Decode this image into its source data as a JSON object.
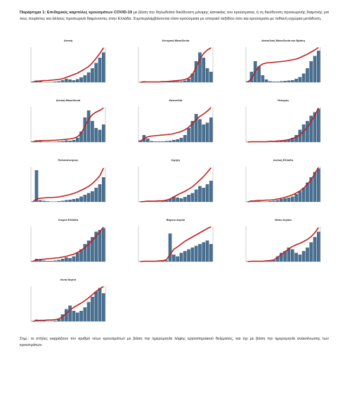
{
  "header": {
    "label": "Παράρτημα 1:",
    "title": "Επιδημικές καμπύλες κρουσμάτων COVID-19",
    "text": "με βάση την δηλωθείσα διεύθυνση μόνιμης κατοικίας του κρούσματος ή τη διεύθυνση προσωρινής διαμονής για τους τουρίστες και άλλους προσωρινά διαμένοντες στην Ελλάδα. Συμπεριλαμβάνονται τόσο κρούσματα με ιστορικό ταξιδίου όσο και κρούσματα με πιθανή εγχώρια μετάδοση."
  },
  "style": {
    "bar_color": "#4a6f8f",
    "line_color": "#c0201f",
    "ylim": [
      0,
      100
    ],
    "y2lim": [
      0,
      100
    ]
  },
  "charts": [
    {
      "title": "Αττική",
      "values": [
        2,
        5,
        3,
        1,
        1,
        1,
        2,
        3,
        6,
        10,
        8,
        6,
        9,
        14,
        20,
        28,
        40,
        55,
        70,
        85
      ],
      "line": [
        1,
        3,
        4,
        5,
        5,
        6,
        7,
        8,
        10,
        14,
        18,
        22,
        26,
        32,
        38,
        45,
        55,
        68,
        82,
        98
      ]
    },
    {
      "title": "Κεντρική Μακεδονία",
      "values": [
        1,
        3,
        2,
        1,
        1,
        1,
        1,
        2,
        3,
        4,
        3,
        3,
        5,
        10,
        25,
        60,
        85,
        70,
        40,
        30
      ],
      "line": [
        0,
        1,
        1,
        1,
        1,
        1,
        2,
        2,
        3,
        4,
        5,
        6,
        8,
        12,
        22,
        42,
        65,
        82,
        92,
        98
      ]
    },
    {
      "title": "Ανατολική Μακεδονία και Θράκη",
      "values": [
        3,
        30,
        60,
        45,
        20,
        8,
        3,
        2,
        2,
        3,
        4,
        5,
        6,
        10,
        15,
        25,
        40,
        60,
        75,
        90
      ],
      "line": [
        1,
        10,
        30,
        45,
        52,
        55,
        56,
        57,
        58,
        59,
        60,
        62,
        64,
        66,
        70,
        75,
        80,
        86,
        92,
        99
      ]
    },
    {
      "title": "Δυτική Μακεδονία",
      "values": [
        2,
        5,
        3,
        1,
        1,
        1,
        1,
        2,
        3,
        5,
        4,
        6,
        12,
        30,
        70,
        90,
        60,
        40,
        35,
        50
      ],
      "line": [
        1,
        3,
        4,
        4,
        4,
        5,
        5,
        6,
        7,
        8,
        9,
        11,
        15,
        25,
        45,
        65,
        78,
        85,
        90,
        97
      ]
    },
    {
      "title": "Θεσσαλία",
      "values": [
        5,
        20,
        10,
        3,
        2,
        2,
        2,
        3,
        4,
        6,
        8,
        12,
        20,
        40,
        60,
        80,
        65,
        50,
        55,
        70
      ],
      "line": [
        2,
        10,
        15,
        17,
        18,
        19,
        20,
        21,
        22,
        24,
        27,
        30,
        35,
        42,
        52,
        64,
        73,
        80,
        88,
        98
      ]
    },
    {
      "title": "Ήπειρος",
      "values": [
        1,
        2,
        1,
        1,
        1,
        1,
        1,
        2,
        3,
        4,
        5,
        8,
        12,
        20,
        35,
        50,
        60,
        75,
        85,
        95
      ],
      "line": [
        0,
        1,
        1,
        1,
        1,
        1,
        2,
        2,
        3,
        4,
        5,
        7,
        10,
        14,
        20,
        30,
        42,
        58,
        76,
        97
      ]
    },
    {
      "title": "Πελοπόννησος",
      "values": [
        1,
        90,
        5,
        3,
        2,
        1,
        1,
        2,
        3,
        5,
        6,
        8,
        10,
        15,
        20,
        25,
        30,
        40,
        50,
        70
      ],
      "line": [
        0,
        8,
        10,
        11,
        12,
        12,
        13,
        14,
        16,
        18,
        21,
        24,
        28,
        33,
        38,
        44,
        52,
        62,
        74,
        96
      ]
    },
    {
      "title": "Κρήτη",
      "values": [
        1,
        2,
        2,
        1,
        1,
        1,
        2,
        4,
        8,
        15,
        12,
        10,
        14,
        20,
        25,
        35,
        45,
        40,
        50,
        60
      ],
      "line": [
        0,
        1,
        2,
        2,
        2,
        3,
        3,
        5,
        8,
        14,
        20,
        25,
        30,
        36,
        43,
        52,
        62,
        72,
        84,
        97
      ]
    },
    {
      "title": "Δυτική Ελλάδα",
      "values": [
        1,
        4,
        3,
        2,
        1,
        1,
        2,
        3,
        5,
        8,
        10,
        12,
        15,
        22,
        30,
        40,
        55,
        70,
        85,
        95
      ],
      "line": [
        0,
        2,
        3,
        4,
        4,
        5,
        5,
        6,
        8,
        10,
        13,
        16,
        20,
        25,
        31,
        39,
        50,
        63,
        80,
        98
      ]
    },
    {
      "title": "Στερεά Ελλάδα",
      "values": [
        2,
        8,
        5,
        3,
        2,
        2,
        3,
        5,
        8,
        12,
        10,
        15,
        25,
        35,
        50,
        60,
        70,
        85,
        90,
        95
      ],
      "line": [
        1,
        4,
        6,
        7,
        8,
        9,
        10,
        11,
        13,
        15,
        18,
        21,
        26,
        32,
        40,
        50,
        60,
        72,
        85,
        98
      ]
    },
    {
      "title": "Βόρειο Αιγαίο",
      "values": [
        1,
        2,
        1,
        1,
        1,
        1,
        2,
        3,
        80,
        20,
        15,
        25,
        30,
        35,
        40,
        45,
        50,
        55,
        60,
        50
      ],
      "line": [
        0,
        1,
        1,
        1,
        1,
        2,
        3,
        5,
        20,
        35,
        42,
        50,
        58,
        64,
        70,
        76,
        82,
        88,
        94,
        99
      ]
    },
    {
      "title": "Νότιο Αιγαίο",
      "values": [
        1,
        2,
        1,
        1,
        1,
        1,
        2,
        4,
        15,
        25,
        30,
        40,
        35,
        25,
        20,
        30,
        40,
        55,
        70,
        85
      ],
      "line": [
        0,
        1,
        1,
        1,
        1,
        2,
        3,
        5,
        12,
        20,
        28,
        36,
        43,
        48,
        52,
        57,
        63,
        71,
        82,
        97
      ]
    },
    {
      "title": "Ιόνια Νησιά",
      "values": [
        1,
        5,
        3,
        2,
        1,
        1,
        2,
        6,
        20,
        35,
        45,
        30,
        25,
        30,
        40,
        55,
        70,
        85,
        95,
        80
      ],
      "line": [
        0,
        2,
        3,
        3,
        4,
        4,
        5,
        7,
        13,
        22,
        32,
        40,
        46,
        52,
        59,
        67,
        76,
        85,
        93,
        99
      ]
    }
  ],
  "footer": "Σημ.: οι στήλες εκφράζουν τον αριθμό νέων κρουσμάτων με βάση την ημερομηνία λήψης εργαστηριακού δείγματος, και όχι με βάση την ημερομηνία ανακοίνωσης των κρουσμάτων."
}
